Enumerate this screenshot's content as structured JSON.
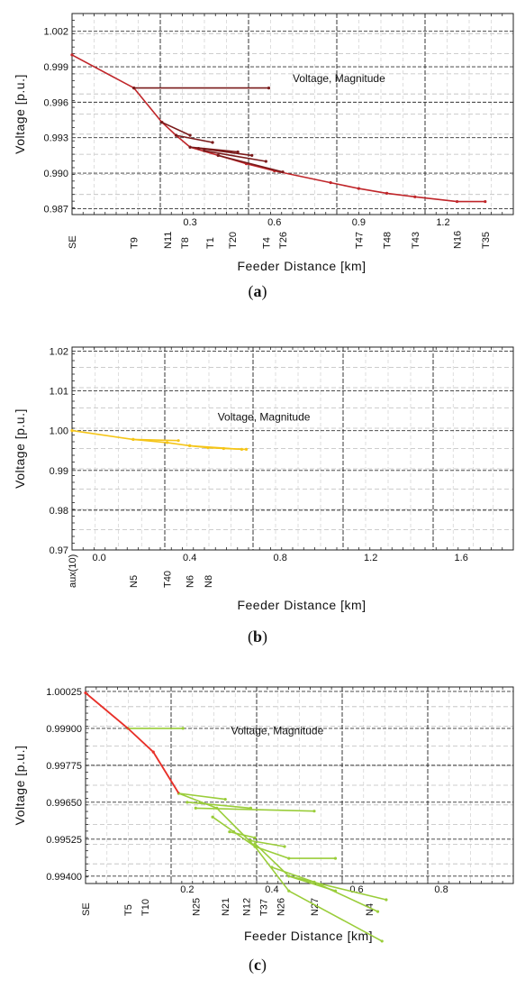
{
  "chart_data": [
    {
      "type": "line",
      "panel_label": "(a)",
      "annotation": "Voltage, Magnitude",
      "xlabel": "Feeder Distance [km]",
      "ylabel": "Voltage [p.u.]",
      "xlim": [
        -0.12,
        1.45
      ],
      "ylim": [
        0.9865,
        1.0035
      ],
      "yticks": [
        "1.002",
        "0.999",
        "0.996",
        "0.993",
        "0.990",
        "0.987"
      ],
      "ytick_values": [
        1.002,
        0.999,
        0.996,
        0.993,
        0.99,
        0.987
      ],
      "xticks": [
        "0.3",
        "0.6",
        "0.9",
        "1.2"
      ],
      "xtick_values": [
        0.3,
        0.6,
        0.9,
        1.2
      ],
      "node_labels": [
        "SE",
        "T9",
        "N11",
        "T8",
        "T1",
        "T20",
        "T4",
        "T26",
        "T47",
        "T48",
        "T43",
        "N16",
        "T35"
      ],
      "node_positions": [
        -0.12,
        0.1,
        0.22,
        0.28,
        0.37,
        0.45,
        0.57,
        0.63,
        0.9,
        1.0,
        1.1,
        1.25,
        1.35
      ],
      "colors": {
        "series": "#c0262a",
        "dark": "#7a1a1a"
      },
      "series": [
        {
          "x": [
            -0.12,
            0.1,
            0.2,
            0.25,
            0.3,
            0.4,
            0.5,
            0.6,
            0.8,
            0.9,
            1.0,
            1.1,
            1.25,
            1.35
          ],
          "y": [
            1.0,
            0.9972,
            0.9943,
            0.9932,
            0.9922,
            0.9915,
            0.9908,
            0.9902,
            0.9892,
            0.9887,
            0.9883,
            0.988,
            0.9876,
            0.9876
          ]
        },
        {
          "x": [
            0.1,
            0.58
          ],
          "y": [
            0.9972,
            0.9972
          ]
        },
        {
          "x": [
            0.2,
            0.3
          ],
          "y": [
            0.9943,
            0.9932
          ]
        },
        {
          "x": [
            0.25,
            0.38
          ],
          "y": [
            0.9932,
            0.9926
          ]
        },
        {
          "x": [
            0.3,
            0.47
          ],
          "y": [
            0.9922,
            0.9918
          ]
        },
        {
          "x": [
            0.33,
            0.52
          ],
          "y": [
            0.9921,
            0.9915
          ]
        },
        {
          "x": [
            0.35,
            0.57
          ],
          "y": [
            0.9919,
            0.991
          ]
        },
        {
          "x": [
            0.4,
            0.63
          ],
          "y": [
            0.9915,
            0.9901
          ]
        }
      ]
    },
    {
      "type": "line",
      "panel_label": "(b)",
      "annotation": "Voltage, Magnitude",
      "xlabel": "Feeder Distance [km]",
      "ylabel": "Voltage [p.u.]",
      "xlim": [
        -0.12,
        1.83
      ],
      "ylim": [
        0.97,
        1.021
      ],
      "yticks": [
        "1.02",
        "1.01",
        "1.00",
        "0.99",
        "0.98",
        "0.97"
      ],
      "ytick_values": [
        1.02,
        1.01,
        1.0,
        0.99,
        0.98,
        0.97
      ],
      "xticks": [
        "0.0",
        "0.4",
        "0.8",
        "1.2",
        "1.6"
      ],
      "xtick_values": [
        0.0,
        0.4,
        0.8,
        1.2,
        1.6
      ],
      "node_labels": [
        "aux(10)",
        "N5",
        "T40",
        "N6",
        "N8"
      ],
      "node_positions": [
        -0.12,
        0.15,
        0.3,
        0.4,
        0.48
      ],
      "colors": {
        "series": "#f5c518"
      },
      "series": [
        {
          "x": [
            -0.12,
            0.15,
            0.3,
            0.4,
            0.48,
            0.55,
            0.65
          ],
          "y": [
            1.0,
            0.9978,
            0.997,
            0.9962,
            0.9957,
            0.9955,
            0.9953
          ]
        },
        {
          "x": [
            0.15,
            0.35
          ],
          "y": [
            0.9978,
            0.9975
          ]
        },
        {
          "x": [
            0.4,
            0.63
          ],
          "y": [
            0.9962,
            0.9953
          ]
        }
      ]
    },
    {
      "type": "line",
      "panel_label": "(c)",
      "annotation": "Voltage, Magnitude",
      "xlabel": "Feeder Distance [km]",
      "ylabel": "Voltage [p.u.]",
      "xlim": [
        -0.04,
        0.97
      ],
      "ylim": [
        0.99375,
        1.0004
      ],
      "yticks": [
        "1.00025",
        "0.99900",
        "0.99775",
        "0.99650",
        "0.99525",
        "0.99400"
      ],
      "ytick_values": [
        1.00025,
        0.999,
        0.99775,
        0.9965,
        0.99525,
        0.994
      ],
      "xticks": [
        "0.2",
        "0.4",
        "0.6",
        "0.8"
      ],
      "xtick_values": [
        0.2,
        0.4,
        0.6,
        0.8
      ],
      "node_labels": [
        "SE",
        "T5",
        "T10",
        "N25",
        "N21",
        "N12",
        "T37",
        "N26",
        "N27",
        "N4"
      ],
      "node_positions": [
        -0.04,
        0.06,
        0.1,
        0.22,
        0.29,
        0.34,
        0.38,
        0.42,
        0.5,
        0.63
      ],
      "colors": {
        "series": "#e8312a",
        "branch": "#9acd3a"
      },
      "series": [
        {
          "x": [
            -0.04,
            0.06,
            0.12,
            0.18
          ],
          "y": [
            1.0002,
            0.999,
            0.9982,
            0.9968
          ]
        },
        {
          "x": [
            0.06,
            0.19
          ],
          "y": [
            0.999,
            0.999
          ]
        },
        {
          "x": [
            0.18,
            0.27,
            0.36,
            0.44,
            0.66
          ],
          "y": [
            0.9968,
            0.9963,
            0.995,
            0.9935,
            0.9918
          ]
        },
        {
          "x": [
            0.18,
            0.29
          ],
          "y": [
            0.9968,
            0.9966
          ]
        },
        {
          "x": [
            0.2,
            0.35
          ],
          "y": [
            0.9965,
            0.9963
          ]
        },
        {
          "x": [
            0.22,
            0.5
          ],
          "y": [
            0.9963,
            0.9962
          ]
        },
        {
          "x": [
            0.26,
            0.31,
            0.36,
            0.44,
            0.55
          ],
          "y": [
            0.996,
            0.9955,
            0.995,
            0.9946,
            0.9946
          ]
        },
        {
          "x": [
            0.3,
            0.36
          ],
          "y": [
            0.9955,
            0.9953
          ]
        },
        {
          "x": [
            0.35,
            0.43
          ],
          "y": [
            0.9952,
            0.995
          ]
        },
        {
          "x": [
            0.36,
            0.44,
            0.55
          ],
          "y": [
            0.9951,
            0.994,
            0.9935
          ]
        },
        {
          "x": [
            0.4,
            0.5,
            0.65
          ],
          "y": [
            0.9943,
            0.9938,
            0.9928
          ]
        },
        {
          "x": [
            0.44,
            0.67
          ],
          "y": [
            0.994,
            0.9932
          ]
        }
      ]
    }
  ]
}
